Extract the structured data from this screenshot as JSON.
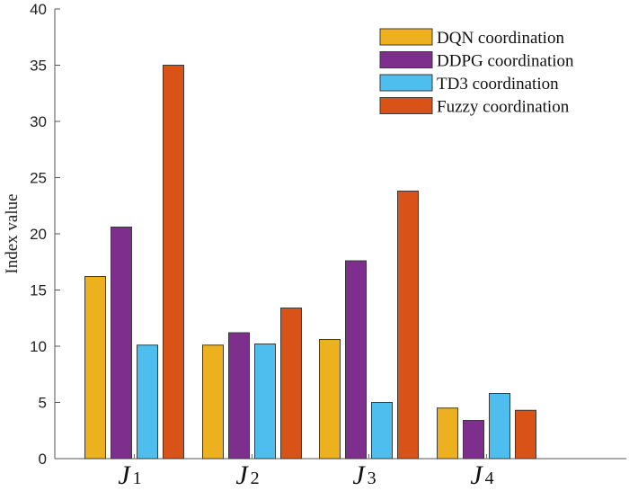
{
  "chart_data": {
    "type": "bar",
    "title": "",
    "xlabel": "",
    "ylabel": "Index value",
    "ylim": [
      0,
      40
    ],
    "yticks": [
      0,
      5,
      10,
      15,
      20,
      25,
      30,
      35,
      40
    ],
    "grid": false,
    "legend_position": "top-right",
    "categories": [
      {
        "main": "J",
        "sub": "1"
      },
      {
        "main": "J",
        "sub": "2"
      },
      {
        "main": "J",
        "sub": "3"
      },
      {
        "main": "J",
        "sub": "4"
      }
    ],
    "series": [
      {
        "name": "DQN coordination",
        "color": "#EDB120",
        "values": [
          16.2,
          10.1,
          10.6,
          4.5
        ]
      },
      {
        "name": "DDPG coordination",
        "color": "#7E2F8E",
        "values": [
          20.6,
          11.2,
          17.6,
          3.4
        ]
      },
      {
        "name": "TD3 coordination",
        "color": "#4DBEEE",
        "values": [
          10.1,
          10.2,
          5.0,
          5.8
        ]
      },
      {
        "name": "Fuzzy coordination",
        "color": "#D95319",
        "values": [
          35.0,
          13.4,
          23.8,
          4.3
        ]
      }
    ]
  }
}
